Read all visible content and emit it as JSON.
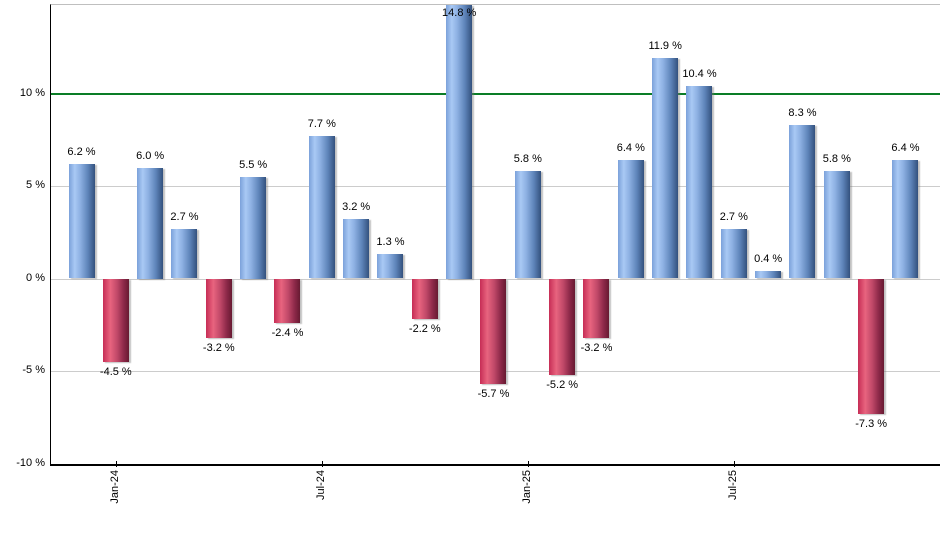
{
  "chart_data": {
    "type": "bar",
    "title": "",
    "unit": "%",
    "values": [
      6.2,
      -4.5,
      6.0,
      2.7,
      -3.2,
      5.5,
      -2.4,
      7.7,
      3.2,
      1.3,
      -2.2,
      14.8,
      -5.7,
      5.8,
      -5.2,
      -3.2,
      6.4,
      11.9,
      10.4,
      2.7,
      0.4,
      8.3,
      5.8,
      -7.3,
      6.4
    ],
    "bar_labels": [
      "6.2 %",
      "-4.5 %",
      "6.0 %",
      "2.7 %",
      "-3.2 %",
      "5.5 %",
      "-2.4 %",
      "7.7 %",
      "3.2 %",
      "1.3 %",
      "-2.2 %",
      "14.8 %",
      "-5.7 %",
      "5.8 %",
      "-5.2 %",
      "-3.2 %",
      "6.4 %",
      "11.9 %",
      "10.4 %",
      "2.7 %",
      "0.4 %",
      "8.3 %",
      "5.8 %",
      "-7.3 %",
      "6.4 %"
    ],
    "x_ticks": [
      {
        "label": "Jan-24",
        "bar_index": 1
      },
      {
        "label": "Jul-24",
        "bar_index": 7
      },
      {
        "label": "Jan-25",
        "bar_index": 13
      },
      {
        "label": "Jul-25",
        "bar_index": 19
      }
    ],
    "y_ticks": [
      {
        "value": 10,
        "label": "10 %"
      },
      {
        "value": 5,
        "label": "5 %"
      },
      {
        "value": 0,
        "label": "0 %"
      },
      {
        "value": -5,
        "label": "-5 %"
      },
      {
        "value": -10,
        "label": "-10 %"
      }
    ],
    "ylim": [
      -10,
      14.8
    ],
    "gridline_values": [
      5,
      0,
      -5
    ],
    "reference_line": {
      "value": 10,
      "color": "#0a7d26"
    },
    "legend": "none",
    "grid_on": true,
    "colors": {
      "positive_bar": "#7ba1da",
      "negative_bar": "#c62d55",
      "reference_line": "#0a7d26",
      "gridline": "#cccccc",
      "axis": "#000000",
      "top_border": "#bfbfbf",
      "label_text": "#000000",
      "background": "#ffffff"
    }
  }
}
